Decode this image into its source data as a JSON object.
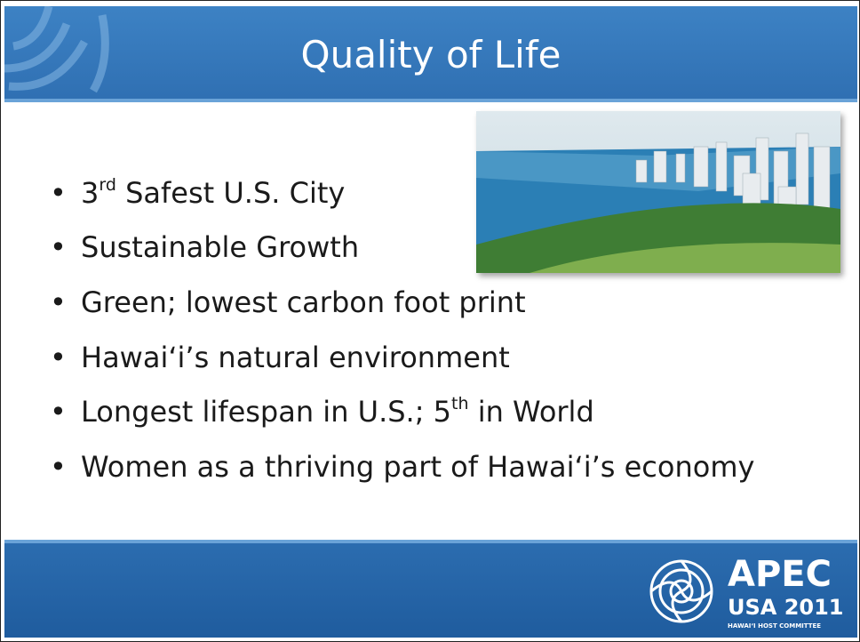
{
  "header": {
    "title": "Quality of Life"
  },
  "bullets": [
    [
      {
        "text": "3"
      },
      {
        "text": "rd",
        "sup": true
      },
      {
        "text": " Safest U.S. City"
      }
    ],
    [
      {
        "text": "Sustainable Growth"
      }
    ],
    [
      {
        "text": "Green; lowest carbon foot print"
      }
    ],
    [
      {
        "text": "Hawai‘i’s natural environment"
      }
    ],
    [
      {
        "text": "Longest lifespan in U.S.; 5"
      },
      {
        "text": "th",
        "sup": true
      },
      {
        "text": " in World"
      }
    ],
    [
      {
        "text": "Women as a thriving part of Hawai‘i’s economy"
      }
    ]
  ],
  "logo": {
    "name": "APEC",
    "subtitle": "USA 2011",
    "committee": "HAWAI‘I HOST COMMITTEE"
  }
}
